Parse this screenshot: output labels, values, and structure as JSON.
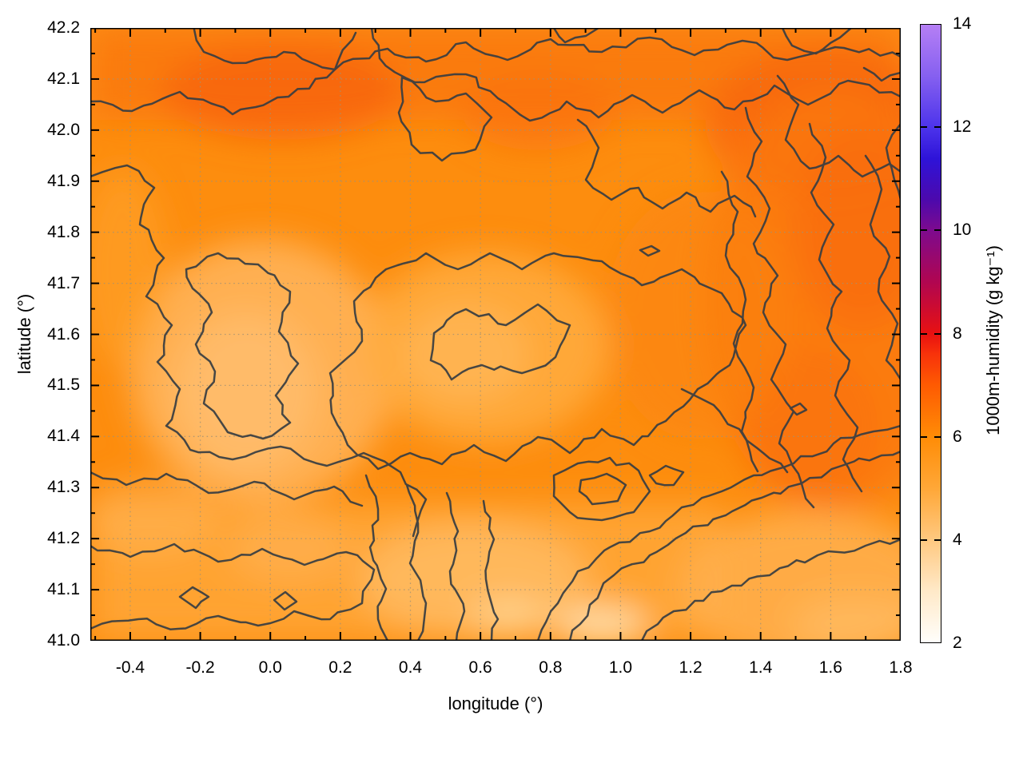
{
  "axes": {
    "x": {
      "label": "longitude (°)",
      "tick_labels": [
        "-0.4",
        "-0.2",
        "0.0",
        "0.2",
        "0.4",
        "0.6",
        "0.8",
        "1.0",
        "1.2",
        "1.4",
        "1.6",
        "1.8"
      ],
      "tick_values": [
        -0.4,
        -0.2,
        0.0,
        0.2,
        0.4,
        0.6,
        0.8,
        1.0,
        1.2,
        1.4,
        1.6,
        1.8
      ]
    },
    "y": {
      "label": "latitude (°)",
      "tick_labels": [
        "41.0",
        "41.1",
        "41.2",
        "41.3",
        "41.4",
        "41.5",
        "41.6",
        "41.7",
        "41.8",
        "41.9",
        "42.0",
        "42.1",
        "42.2"
      ],
      "tick_values": [
        41.0,
        41.1,
        41.2,
        41.3,
        41.4,
        41.5,
        41.6,
        41.7,
        41.8,
        41.9,
        42.0,
        42.1,
        42.2
      ]
    }
  },
  "colorbar": {
    "label": "1000m-humidity (g kg⁻¹)",
    "tick_labels": [
      "2",
      "4",
      "6",
      "8",
      "10",
      "12",
      "14"
    ],
    "tick_values": [
      2,
      4,
      6,
      8,
      10,
      12,
      14
    ],
    "range": [
      2,
      14
    ],
    "gradient_stops": [
      {
        "value": 14,
        "color": "#b57ff5"
      },
      {
        "value": 13,
        "color": "#8660f0"
      },
      {
        "value": 12,
        "color": "#4c33eb"
      },
      {
        "value": 11.4,
        "color": "#2e13d8"
      },
      {
        "value": 10.6,
        "color": "#4c09ad"
      },
      {
        "value": 10,
        "color": "#7d0a8e"
      },
      {
        "value": 9,
        "color": "#b10650"
      },
      {
        "value": 8,
        "color": "#e81111"
      },
      {
        "value": 7.6,
        "color": "#f8320a"
      },
      {
        "value": 7,
        "color": "#fe5a02"
      },
      {
        "value": 6,
        "color": "#ff8c06"
      },
      {
        "value": 5,
        "color": "#ffa737"
      },
      {
        "value": 4,
        "color": "#ffc87f"
      },
      {
        "value": 3,
        "color": "#ffe9c8"
      },
      {
        "value": 2,
        "color": "#fffefb"
      }
    ]
  },
  "chart_data": {
    "type": "heatmap",
    "subtype": "filled-contour-map",
    "title": "",
    "xlabel": "longitude (°)",
    "ylabel": "latitude (°)",
    "colorbar_label": "1000m-humidity (g kg⁻¹)",
    "xlim": [
      -0.51,
      1.8
    ],
    "ylim": [
      41.0,
      42.2
    ],
    "color_range": [
      2,
      14
    ],
    "grid": true,
    "contour_levels": [
      4.5,
      5.0,
      5.5,
      6.0
    ],
    "field_units": "g kg⁻¹",
    "sample_grid": {
      "lon": [
        -0.4,
        -0.2,
        0.0,
        0.2,
        0.4,
        0.6,
        0.8,
        1.0,
        1.2,
        1.4,
        1.6,
        1.8
      ],
      "lat": [
        42.2,
        42.05,
        41.9,
        41.75,
        41.6,
        41.45,
        41.3,
        41.15,
        41.0
      ],
      "humidity_g_per_kg": [
        [
          5.8,
          5.9,
          6.0,
          6.1,
          6.0,
          5.9,
          5.9,
          6.0,
          5.9,
          6.0,
          6.1,
          6.0
        ],
        [
          5.6,
          5.8,
          6.3,
          6.2,
          5.9,
          5.8,
          5.9,
          5.8,
          5.9,
          6.0,
          6.2,
          6.3
        ],
        [
          5.3,
          5.5,
          5.6,
          5.7,
          5.6,
          5.5,
          5.7,
          5.8,
          5.8,
          5.9,
          6.1,
          6.3
        ],
        [
          5.0,
          5.2,
          5.3,
          5.4,
          5.3,
          5.4,
          5.5,
          5.6,
          5.8,
          5.9,
          6.2,
          6.2
        ],
        [
          4.7,
          4.6,
          5.0,
          5.2,
          5.0,
          5.1,
          5.3,
          5.5,
          5.7,
          5.8,
          6.0,
          6.1
        ],
        [
          4.9,
          4.6,
          4.8,
          5.1,
          4.9,
          5.0,
          5.2,
          5.4,
          5.6,
          5.9,
          6.0,
          5.9
        ],
        [
          5.1,
          5.0,
          5.2,
          4.9,
          4.8,
          5.0,
          5.3,
          5.5,
          5.7,
          5.6,
          5.4,
          5.2
        ],
        [
          4.9,
          4.8,
          5.0,
          4.7,
          4.6,
          4.8,
          4.9,
          5.2,
          5.0,
          4.8,
          4.7,
          4.6
        ],
        [
          5.0,
          4.9,
          4.8,
          4.6,
          4.4,
          4.2,
          4.5,
          4.8,
          4.6,
          4.5,
          4.4,
          4.3
        ]
      ]
    }
  },
  "colors": {
    "map_base": "#fd8d0e",
    "map_high": "#f8660c",
    "map_low": "#ffe3b5",
    "contour_line": "#383d42",
    "grid_dots": "#a39274",
    "text": "#000000",
    "border": "#000000"
  }
}
